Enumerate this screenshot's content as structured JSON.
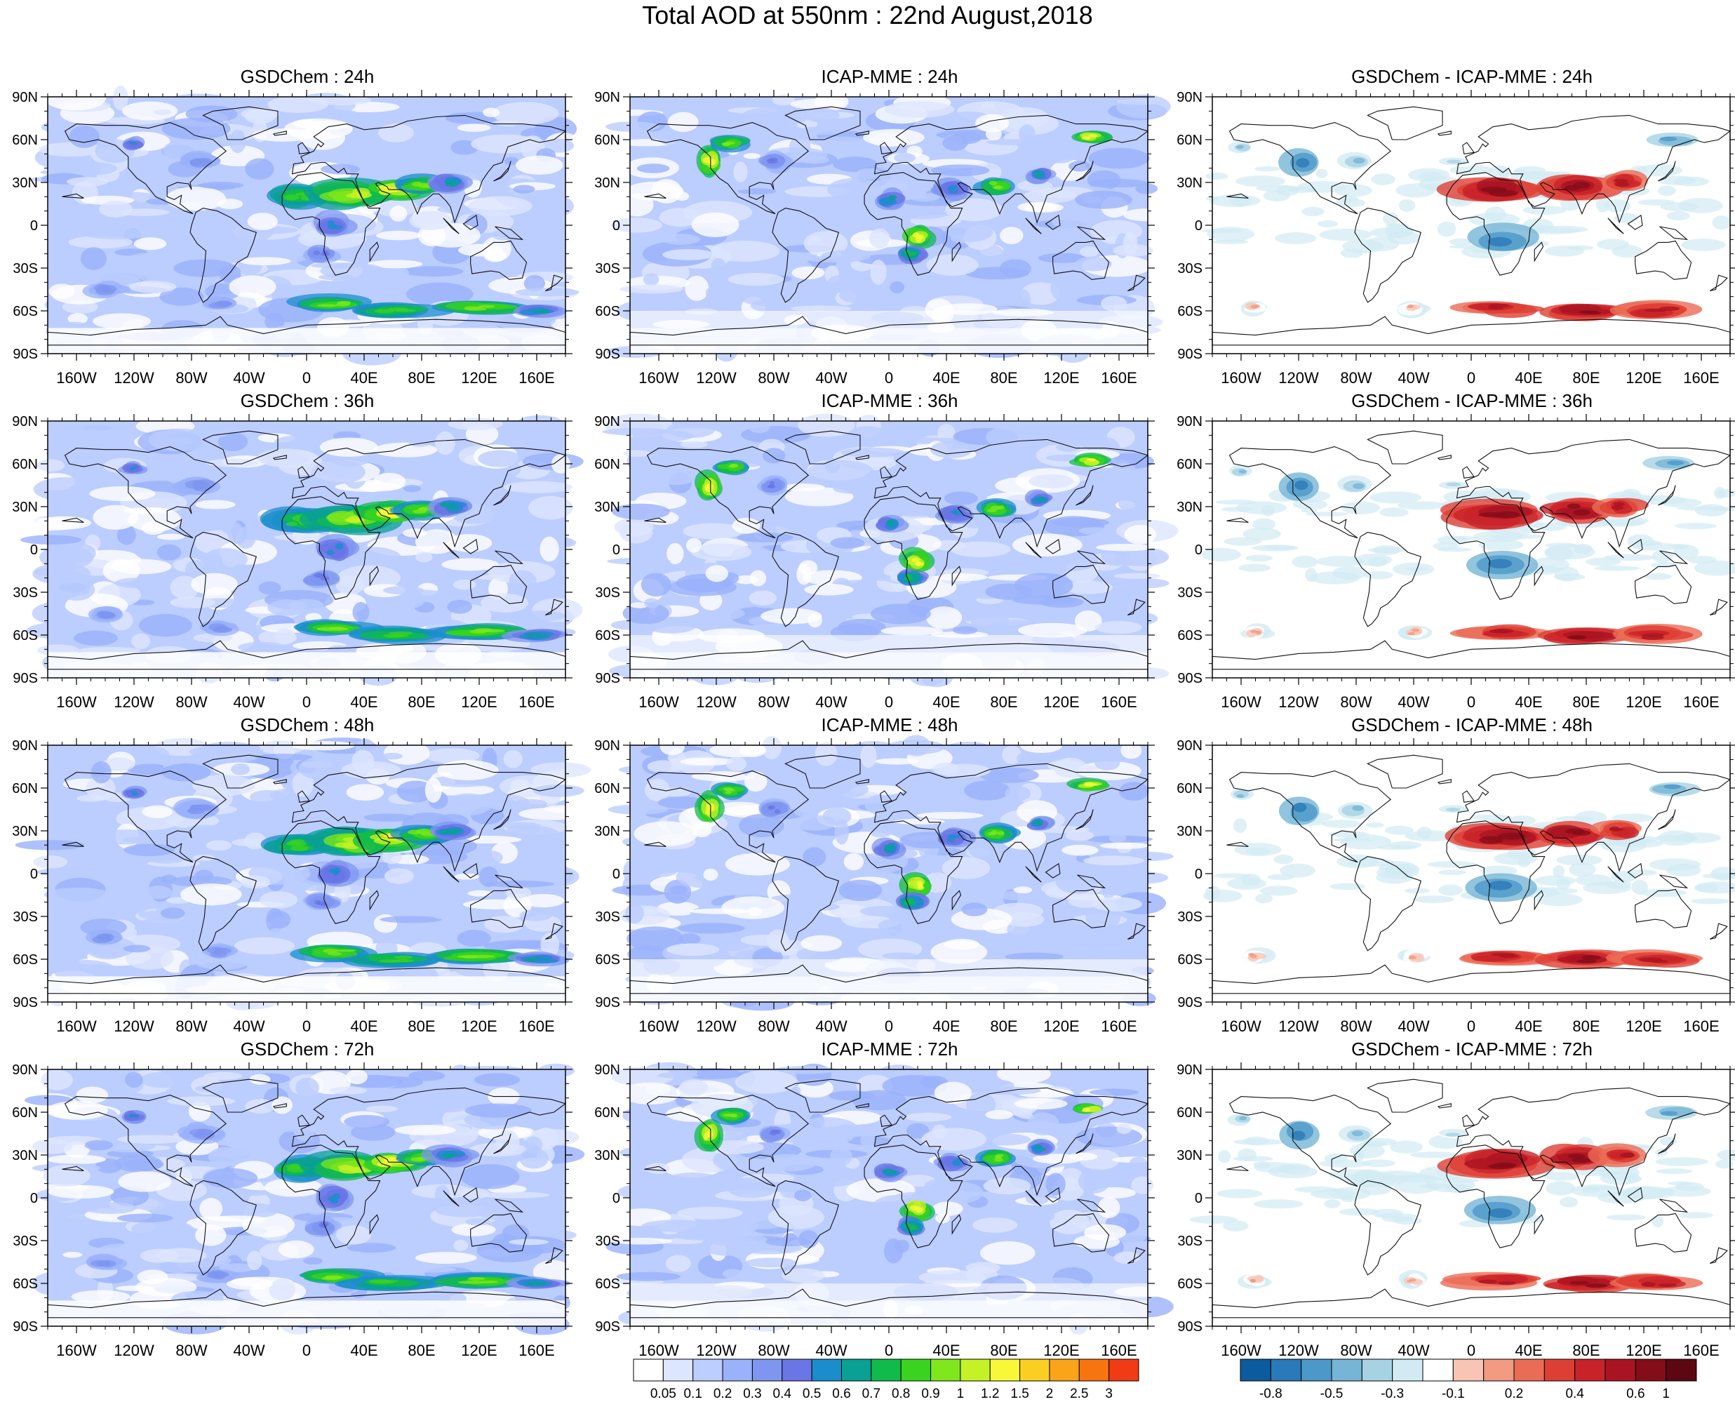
{
  "title": "Total AOD at 550nm : 22nd August,2018",
  "panel_titles": [
    [
      "GSDChem : 24h",
      "ICAP-MME : 24h",
      "GSDChem - ICAP-MME : 24h"
    ],
    [
      "GSDChem : 36h",
      "ICAP-MME : 36h",
      "GSDChem - ICAP-MME : 36h"
    ],
    [
      "GSDChem : 48h",
      "ICAP-MME : 48h",
      "GSDChem - ICAP-MME : 48h"
    ],
    [
      "GSDChem : 72h",
      "ICAP-MME : 72h",
      "GSDChem - ICAP-MME : 72h"
    ]
  ],
  "lat_labels": [
    "90N",
    "60N",
    "30N",
    "0",
    "30S",
    "60S",
    "90S"
  ],
  "lon_labels": [
    "160W",
    "120W",
    "80W",
    "40W",
    "0",
    "40E",
    "80E",
    "120E",
    "160E"
  ],
  "aod_colorbar": {
    "labels": [
      "0.05",
      "0.1",
      "0.2",
      "0.3",
      "0.4",
      "0.5",
      "0.6",
      "0.7",
      "0.8",
      "0.9",
      "1",
      "1.2",
      "1.5",
      "2",
      "2.5",
      "3"
    ],
    "colors": [
      "#ffffff",
      "#dde6ff",
      "#bccdff",
      "#9ab2fb",
      "#7f96f0",
      "#6a75e6",
      "#1b8dcc",
      "#0aa094",
      "#11bb4b",
      "#3ad320",
      "#7fe71b",
      "#c5f227",
      "#f8f738",
      "#fbcf22",
      "#f9a419",
      "#f7740f",
      "#f13b14"
    ]
  },
  "diff_colorbar": {
    "labels": [
      "-0.8",
      "-0.5",
      "-0.3",
      "-0.1",
      "0.2",
      "0.4",
      "0.6",
      "1"
    ],
    "colors": [
      "#0b5b9e",
      "#2a79b8",
      "#4c98c9",
      "#76b5d6",
      "#a6d2e4",
      "#d2ebf3",
      "#ffffff",
      "#f8c5b5",
      "#f39a82",
      "#eb6c55",
      "#de3f34",
      "#c9232a",
      "#aa1422",
      "#850d19",
      "#5c0712"
    ]
  }
}
